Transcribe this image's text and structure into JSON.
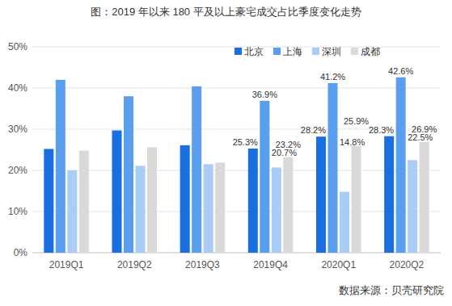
{
  "chart_data": {
    "type": "bar",
    "title": "图：2019 年以来 180 平及以上豪宅成交占比季度变化走势",
    "source": "数据来源：贝壳研究院",
    "categories": [
      "2019Q1",
      "2019Q2",
      "2019Q3",
      "2019Q4",
      "2020Q1",
      "2020Q2"
    ],
    "series": [
      {
        "name": "北京",
        "color": "#1a6fe0",
        "values": [
          25.2,
          29.7,
          26.1,
          25.3,
          28.2,
          28.3
        ],
        "value_labels": [
          null,
          null,
          null,
          "25.3%",
          "28.2%",
          "28.3%"
        ]
      },
      {
        "name": "上海",
        "color": "#5a9ef0",
        "values": [
          42.0,
          38.0,
          40.4,
          36.9,
          41.2,
          42.6
        ],
        "value_labels": [
          null,
          null,
          null,
          "36.9%",
          "41.2%",
          "42.6%"
        ]
      },
      {
        "name": "深圳",
        "color": "#a9cdf5",
        "values": [
          20.0,
          21.1,
          21.5,
          20.7,
          14.8,
          22.5
        ],
        "value_labels": [
          null,
          null,
          null,
          "20.7%",
          "14.8%",
          "22.5%"
        ]
      },
      {
        "name": "成都",
        "color": "#d9d9d9",
        "values": [
          24.8,
          25.6,
          21.9,
          23.2,
          25.9,
          26.9
        ],
        "value_labels": [
          null,
          null,
          null,
          "23.2%",
          "25.9%",
          "26.9%"
        ]
      }
    ],
    "ylim": [
      0,
      50
    ],
    "yticks": [
      {
        "value": 0,
        "label": "0%"
      },
      {
        "value": 10,
        "label": "10%"
      },
      {
        "value": 20,
        "label": "20%"
      },
      {
        "value": 30,
        "label": "30%"
      },
      {
        "value": 40,
        "label": "40%"
      },
      {
        "value": 50,
        "label": "50%"
      }
    ],
    "grid": true,
    "legend": "top-right",
    "data_labels": true
  }
}
